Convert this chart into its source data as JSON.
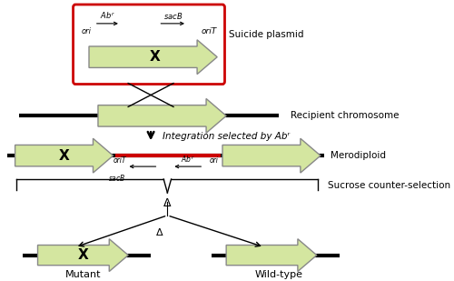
{
  "bg_color": "#ffffff",
  "arrow_fill": "#d4e6a0",
  "arrow_edge": "#888888",
  "red_line": "#cc0000",
  "black": "#000000",
  "red_box": "#cc0000",
  "gray": "#555555",
  "label_fontsize": 7.5,
  "small_fontsize": 7,
  "suicide_label": "Suicide plasmid",
  "recipient_label": "Recipient chromosome",
  "integration_label": "Integration selected by Abʳ",
  "merodiploid_label": "Merodiploid",
  "counter_label": "Sucrose counter-selection",
  "mutant_label": "Mutant",
  "wildtype_label": "Wild-type"
}
